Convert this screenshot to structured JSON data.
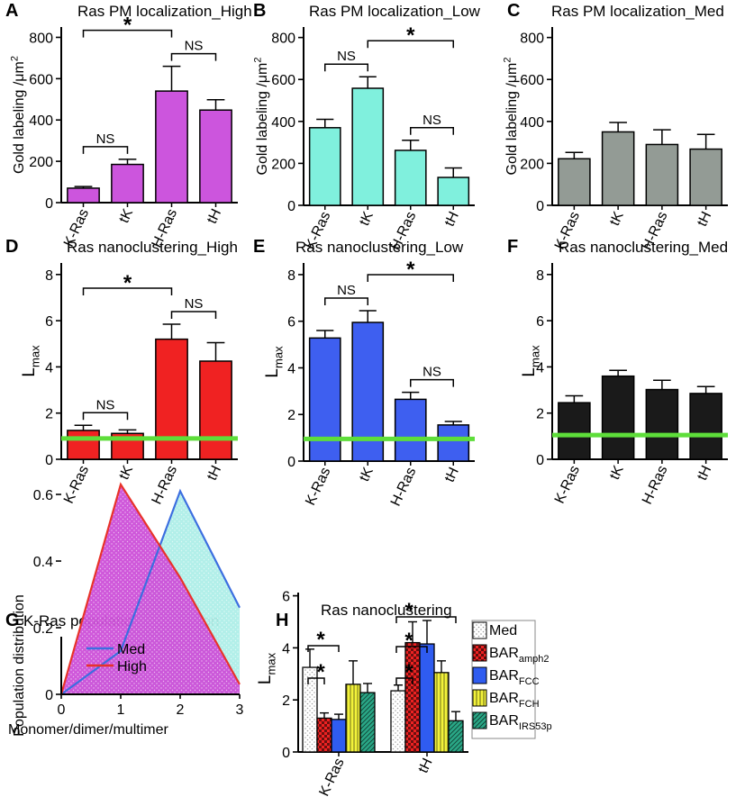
{
  "figure": {
    "background": "#ffffff",
    "axis_color": "#000000"
  },
  "chart_data": [
    {
      "id": "A",
      "panel_label": "A",
      "type": "bar",
      "title": "Ras PM localization_High",
      "ylabel": {
        "main": "Gold labeling /μm",
        "sup": "2"
      },
      "categories": [
        "K-Ras",
        "tK",
        "H-Ras",
        "tH"
      ],
      "values": [
        70,
        185,
        540,
        448
      ],
      "errors": [
        8,
        25,
        120,
        50
      ],
      "ylim": [
        0,
        850
      ],
      "yticks": [
        0,
        200,
        400,
        600,
        800
      ],
      "color": "#cc55dd",
      "pattern": "solid",
      "brackets": [
        {
          "from": 0,
          "to": 1,
          "label": "NS"
        },
        {
          "from": 2,
          "to": 3,
          "label": "NS"
        },
        {
          "from": 0,
          "to": 2,
          "label": "*"
        }
      ]
    },
    {
      "id": "B",
      "panel_label": "B",
      "type": "bar",
      "title": "Ras PM localization_Low",
      "ylabel": {
        "main": "Gold labeling /μm",
        "sup": "2"
      },
      "categories": [
        "K-Ras",
        "tK",
        "H-Ras",
        "tH"
      ],
      "values": [
        370,
        558,
        262,
        133
      ],
      "errors": [
        40,
        55,
        48,
        45
      ],
      "ylim": [
        0,
        850
      ],
      "yticks": [
        0,
        200,
        400,
        600,
        800
      ],
      "color": "#80f0dd",
      "pattern": "solid",
      "brackets": [
        {
          "from": 0,
          "to": 1,
          "label": "NS"
        },
        {
          "from": 2,
          "to": 3,
          "label": "NS"
        },
        {
          "from": 1,
          "to": 3,
          "label": "*"
        }
      ]
    },
    {
      "id": "C",
      "panel_label": "C",
      "type": "bar",
      "title": "Ras PM localization_Med",
      "ylabel": {
        "main": "Gold labeling /μm",
        "sup": "2"
      },
      "categories": [
        "K-Ras",
        "tK",
        "H-Ras",
        "tH"
      ],
      "values": [
        222,
        350,
        290,
        268
      ],
      "errors": [
        30,
        45,
        70,
        70
      ],
      "ylim": [
        0,
        850
      ],
      "yticks": [
        0,
        200,
        400,
        600,
        800
      ],
      "color": "#939b95",
      "pattern": "solid",
      "brackets": []
    },
    {
      "id": "D",
      "panel_label": "D",
      "type": "bar",
      "title": "Ras nanoclustering_High",
      "ylabel": {
        "main": "L",
        "sub": "max"
      },
      "categories": [
        "K-Ras",
        "tK",
        "H-Ras",
        "tH"
      ],
      "values": [
        1.25,
        1.12,
        5.2,
        4.25
      ],
      "errors": [
        0.22,
        0.15,
        0.65,
        0.8
      ],
      "ylim": [
        0,
        8.5
      ],
      "yticks": [
        0,
        2,
        4,
        6,
        8
      ],
      "color": "#f02222",
      "pattern": "solid",
      "reference_line": {
        "value": 0.9,
        "color": "#5ede3a"
      },
      "brackets": [
        {
          "from": 0,
          "to": 1,
          "label": "NS"
        },
        {
          "from": 2,
          "to": 3,
          "label": "NS"
        },
        {
          "from": 0,
          "to": 2,
          "label": "*"
        }
      ]
    },
    {
      "id": "E",
      "panel_label": "E",
      "type": "bar",
      "title": "Ras nanoclustering_Low",
      "ylabel": {
        "main": "L",
        "sub": "max"
      },
      "categories": [
        "K-Ras",
        "tK",
        "H-Ras",
        "tH"
      ],
      "values": [
        5.28,
        5.95,
        2.65,
        1.55
      ],
      "errors": [
        0.32,
        0.5,
        0.3,
        0.15
      ],
      "ylim": [
        0,
        8.5
      ],
      "yticks": [
        0,
        2,
        4,
        6,
        8
      ],
      "color": "#3e5ff0",
      "pattern": "solid",
      "reference_line": {
        "value": 0.95,
        "color": "#5ede3a"
      },
      "brackets": [
        {
          "from": 0,
          "to": 1,
          "label": "NS"
        },
        {
          "from": 2,
          "to": 3,
          "label": "NS"
        },
        {
          "from": 1,
          "to": 3,
          "label": "*"
        }
      ]
    },
    {
      "id": "F",
      "panel_label": "F",
      "type": "bar",
      "title": "Ras nanoclustering_Med",
      "ylabel": {
        "main": "L",
        "sub": "max"
      },
      "categories": [
        "K-Ras",
        "tK",
        "H-Ras",
        "tH"
      ],
      "values": [
        2.45,
        3.6,
        3.02,
        2.85
      ],
      "errors": [
        0.3,
        0.25,
        0.4,
        0.3
      ],
      "ylim": [
        0,
        8.5
      ],
      "yticks": [
        0,
        2,
        4,
        6,
        8
      ],
      "color": "#1a1a1a",
      "pattern": "solid",
      "reference_line": {
        "value": 1.05,
        "color": "#5ede3a"
      },
      "brackets": []
    },
    {
      "id": "G",
      "panel_label": "G",
      "type": "area",
      "title": "K-Ras population distribution",
      "xlabel": "Monomer/dimer/multimer",
      "ylabel": "Population distribution",
      "xlim": [
        0,
        3
      ],
      "ylim": [
        0,
        0.7
      ],
      "xticks": [
        0,
        1,
        2,
        3
      ],
      "yticks": [
        0.0,
        0.2,
        0.4,
        0.6
      ],
      "series": [
        {
          "name": "Med",
          "x": [
            0,
            1,
            2,
            3
          ],
          "y": [
            0.0,
            0.13,
            0.61,
            0.26
          ],
          "line": "#3c6ee0",
          "fill": "#aeeee8",
          "pattern": "dots"
        },
        {
          "name": "High",
          "x": [
            0,
            1,
            2,
            3
          ],
          "y": [
            0.0,
            0.63,
            0.35,
            0.03
          ],
          "line": "#e8332a",
          "fill": "#cc4fd8",
          "pattern": "dots"
        }
      ],
      "legend": "top-left"
    },
    {
      "id": "H",
      "panel_label": "H",
      "type": "bar",
      "title": "Ras nanoclustering",
      "ylabel": {
        "main": "L",
        "sub": "max"
      },
      "categories": [
        "K-Ras",
        "tH"
      ],
      "ylim": [
        0,
        6.4
      ],
      "yticks": [
        0,
        2,
        4,
        6
      ],
      "series": [
        {
          "name": "Med",
          "sub": "",
          "color": "#ffffff",
          "pattern": "dots",
          "values": [
            3.25,
            2.35
          ],
          "errors": [
            0.7,
            0.22
          ]
        },
        {
          "name": "BAR",
          "sub": "amph2",
          "color": "#ee2222",
          "pattern": "checker",
          "values": [
            1.3,
            4.2
          ],
          "errors": [
            0.2,
            0.8
          ]
        },
        {
          "name": "BAR",
          "sub": "FCC",
          "color": "#2f5cf0",
          "pattern": "solid",
          "values": [
            1.25,
            4.15
          ],
          "errors": [
            0.2,
            0.9
          ]
        },
        {
          "name": "BAR",
          "sub": "FCH",
          "color": "#f2f23a",
          "pattern": "vlines",
          "values": [
            2.6,
            3.05
          ],
          "errors": [
            0.9,
            0.45
          ]
        },
        {
          "name": "BAR",
          "sub": "IRS53p",
          "color": "#2aa887",
          "pattern": "diag",
          "values": [
            2.28,
            1.2
          ],
          "errors": [
            0.35,
            0.35
          ]
        }
      ],
      "brackets": [
        {
          "group": 0,
          "from": 0,
          "to": 1,
          "label": "*"
        },
        {
          "group": 0,
          "from": 0,
          "to": 2,
          "label": "*"
        },
        {
          "group": 1,
          "from": 0,
          "to": 1,
          "label": "*"
        },
        {
          "group": 1,
          "from": 0,
          "to": 2,
          "label": "*"
        },
        {
          "group": 1,
          "from": 0,
          "to": 4,
          "label": "*"
        }
      ],
      "legend": "top-right"
    }
  ]
}
